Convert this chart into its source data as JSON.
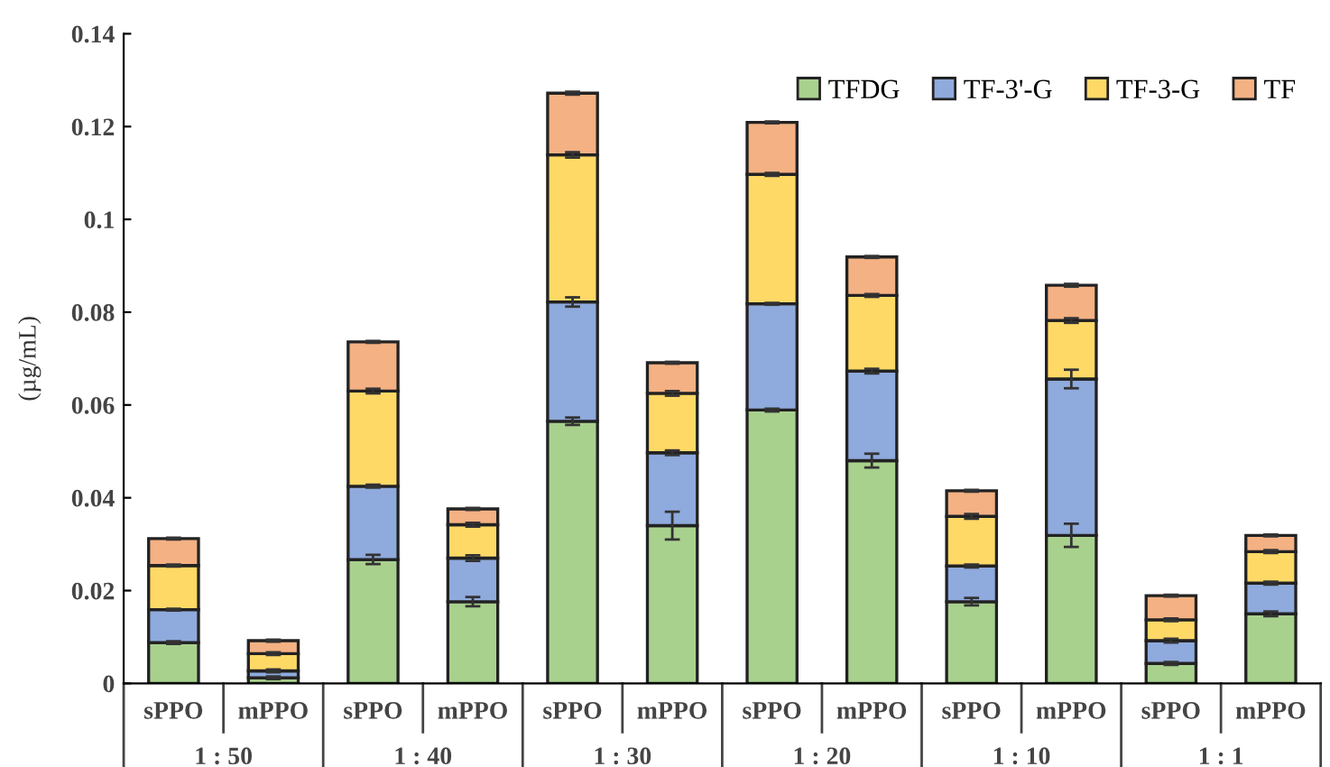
{
  "chart_data": {
    "type": "bar",
    "stacked": true,
    "ylabel": "(µg/mL)",
    "categories": [
      "sPPO",
      "mPPO",
      "sPPO",
      "mPPO",
      "sPPO",
      "mPPO",
      "sPPO",
      "mPPO",
      "sPPO",
      "mPPO",
      "sPPO",
      "mPPO"
    ],
    "annotations": [
      "1 : 50",
      "1 : 40",
      "1 : 30",
      "1 : 20",
      "1 : 10",
      "1 : 1"
    ],
    "series": [
      {
        "name": "TFDG",
        "color": "#a9d18e",
        "values": [
          0.0088,
          0.0012,
          0.0267,
          0.0176,
          0.0565,
          0.034,
          0.0589,
          0.048,
          0.0176,
          0.0319,
          0.0043,
          0.015
        ],
        "errors": [
          0.0003,
          0.0003,
          0.001,
          0.001,
          0.0008,
          0.003,
          0.0003,
          0.0015,
          0.0008,
          0.0025,
          0.0003,
          0.0005
        ]
      },
      {
        "name": "TF-3'-G",
        "color": "#8faadc",
        "values": [
          0.0071,
          0.0015,
          0.0158,
          0.0094,
          0.0257,
          0.0157,
          0.0229,
          0.0193,
          0.0077,
          0.0337,
          0.0049,
          0.0066
        ],
        "errors": [
          0.0002,
          0.0003,
          0.0003,
          0.0006,
          0.001,
          0.0005,
          0.0002,
          0.0005,
          0.0003,
          0.002,
          0.0004,
          0.0003
        ]
      },
      {
        "name": "TF-3-G",
        "color": "#ffd966",
        "values": [
          0.0095,
          0.0037,
          0.0205,
          0.0072,
          0.0317,
          0.0128,
          0.0279,
          0.0163,
          0.0107,
          0.0126,
          0.0045,
          0.0068
        ],
        "errors": [
          0.0002,
          0.0003,
          0.0005,
          0.0004,
          0.0006,
          0.0005,
          0.0003,
          0.0003,
          0.0005,
          0.0005,
          0.0003,
          0.0003
        ]
      },
      {
        "name": "TF",
        "color": "#f4b183",
        "values": [
          0.0058,
          0.0028,
          0.0106,
          0.0034,
          0.0133,
          0.0066,
          0.0112,
          0.0083,
          0.0055,
          0.0076,
          0.0052,
          0.0035
        ],
        "errors": [
          0.0002,
          0.0002,
          0.0002,
          0.0002,
          0.0003,
          0.0002,
          0.0002,
          0.0002,
          0.0002,
          0.0003,
          0.0002,
          0.0002
        ]
      }
    ],
    "ylim": [
      0,
      0.14
    ],
    "yticks": [
      0,
      0.02,
      0.04,
      0.06,
      0.08,
      0.1,
      0.12,
      0.14
    ],
    "legend": "top right",
    "grid": false
  }
}
